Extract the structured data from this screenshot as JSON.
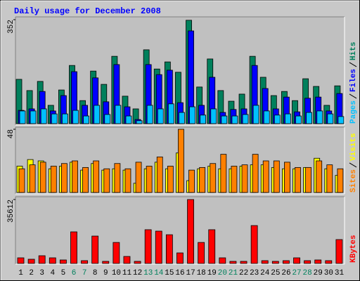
{
  "chart_data": [
    {
      "type": "bar",
      "title": "Daily usage for December 2008",
      "ylim": [
        0,
        352
      ],
      "yticks": [
        352
      ],
      "series": [
        {
          "name": "Hits",
          "color": "#00805c",
          "values": [
            150,
            112,
            143,
            62,
            114,
            197,
            78,
            178,
            133,
            228,
            93,
            50,
            250,
            185,
            209,
            174,
            350,
            124,
            219,
            112,
            76,
            100,
            228,
            157,
            95,
            109,
            78,
            152,
            126,
            62,
            128
          ]
        },
        {
          "name": "Files",
          "color": "#0000ff",
          "values": [
            45,
            50,
            109,
            43,
            95,
            176,
            62,
            155,
            74,
            200,
            57,
            14,
            200,
            166,
            181,
            71,
            314,
            62,
            157,
            38,
            48,
            50,
            197,
            119,
            50,
            90,
            40,
            86,
            90,
            43,
            102
          ]
        },
        {
          "name": "Pages",
          "color": "#00c0ff",
          "values": [
            43,
            43,
            50,
            33,
            33,
            45,
            26,
            62,
            31,
            62,
            26,
            10,
            62,
            50,
            67,
            38,
            57,
            29,
            50,
            26,
            26,
            31,
            62,
            43,
            29,
            33,
            26,
            38,
            43,
            33,
            24
          ]
        }
      ]
    },
    {
      "type": "bar",
      "ylim": [
        0,
        48
      ],
      "yticks": [
        48
      ],
      "series": [
        {
          "name": "Visits",
          "color": "#ffff00",
          "values": [
            20,
            25,
            24,
            18,
            20,
            23,
            17,
            22,
            17,
            18,
            17,
            7,
            18,
            23,
            18,
            30,
            9,
            18,
            20,
            18,
            18,
            20,
            21,
            21,
            19,
            18,
            18,
            19,
            26,
            18,
            13
          ]
        },
        {
          "name": "Sites",
          "color": "#ff8000",
          "values": [
            18,
            21,
            23,
            20,
            22,
            24,
            19,
            24,
            18,
            22,
            18,
            23,
            20,
            27,
            20,
            48,
            17,
            19,
            22,
            29,
            20,
            21,
            29,
            24,
            24,
            23,
            19,
            19,
            24,
            21,
            18
          ]
        }
      ]
    },
    {
      "type": "bar",
      "ylim": [
        0,
        35612
      ],
      "yticks": [
        35612
      ],
      "categories": [
        "1",
        "2",
        "3",
        "4",
        "5",
        "6",
        "7",
        "8",
        "9",
        "10",
        "11",
        "12",
        "13",
        "14",
        "15",
        "16",
        "17",
        "18",
        "19",
        "20",
        "21",
        "22",
        "23",
        "24",
        "25",
        "26",
        "27",
        "28",
        "29",
        "30",
        "31"
      ],
      "category_colors": [
        "#000000",
        "#000000",
        "#000000",
        "#000000",
        "#000000",
        "#00805c",
        "#00805c",
        "#000000",
        "#000000",
        "#000000",
        "#000000",
        "#000000",
        "#00805c",
        "#00805c",
        "#000000",
        "#000000",
        "#000000",
        "#000000",
        "#000000",
        "#00805c",
        "#00805c",
        "#000000",
        "#000000",
        "#000000",
        "#000000",
        "#000000",
        "#00805c",
        "#00805c",
        "#000000",
        "#000000",
        "#000000"
      ],
      "series": [
        {
          "name": "KBytes",
          "color": "#ff0000",
          "values": [
            3130,
            2350,
            4300,
            3130,
            1950,
            17600,
            1560,
            15250,
            1170,
            11700,
            3900,
            1170,
            18800,
            18000,
            16000,
            5870,
            35612,
            11700,
            18800,
            3130,
            1170,
            1170,
            21100,
            1560,
            1170,
            1560,
            3130,
            1560,
            1950,
            1560,
            13300
          ]
        }
      ]
    }
  ]
}
